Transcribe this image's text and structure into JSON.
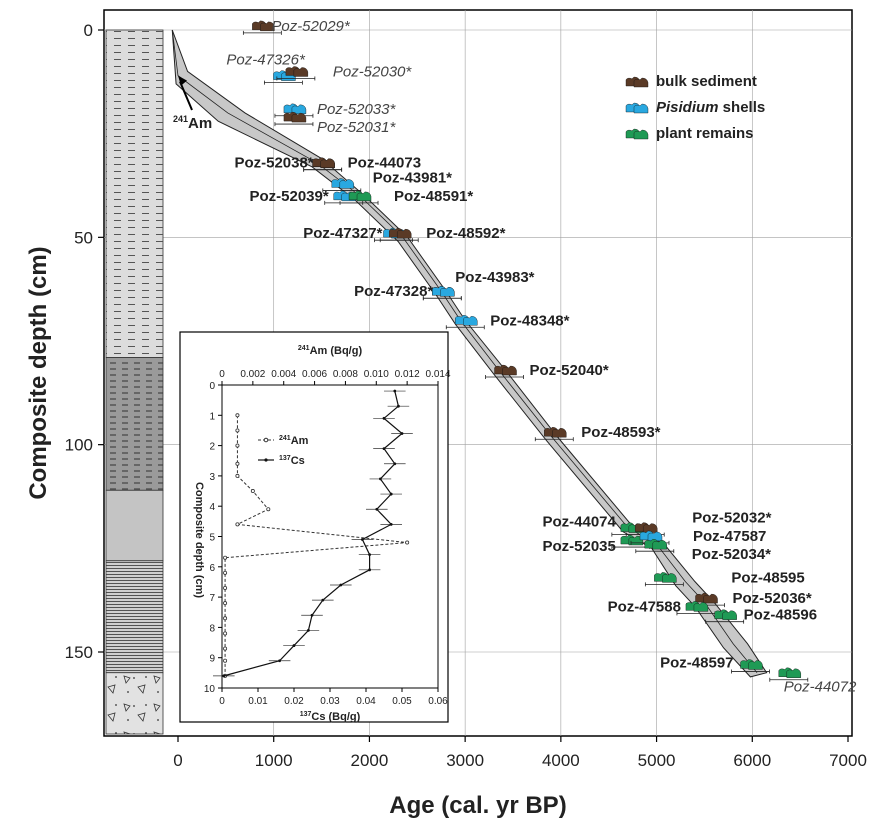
{
  "chart_data": [
    {
      "type": "scatter",
      "title": "",
      "xlabel": "Age (cal. yr BP)",
      "ylabel": "Composite depth (cm)",
      "xlim": [
        -900,
        7000
      ],
      "ylim": [
        172,
        -7
      ],
      "xticks": [
        0,
        1000,
        2000,
        3000,
        4000,
        5000,
        6000,
        7000
      ],
      "yticks": [
        0,
        50,
        100,
        150
      ],
      "grid": true,
      "legend": "top-right",
      "legend_entries": [
        {
          "label_pre": "",
          "label_em": "",
          "label_post": "bulk sediment",
          "kind": "bulk"
        },
        {
          "label_pre": "",
          "label_em": "Pisidium",
          "label_post": " shells",
          "kind": "shell"
        },
        {
          "label_pre": "",
          "label_em": "",
          "label_post": "plant remains",
          "kind": "plant"
        }
      ],
      "colors": {
        "bulk": "#5a3a26",
        "shell": "#29a8e0",
        "plant": "#1f9a55",
        "envelope": "#c8c8c8"
      },
      "age_model_mean": [
        [
          -60,
          0
        ],
        [
          0,
          11
        ],
        [
          520,
          20
        ],
        [
          1450,
          32
        ],
        [
          1900,
          40
        ],
        [
          2350,
          50
        ],
        [
          2750,
          63
        ],
        [
          2950,
          70
        ],
        [
          3350,
          82
        ],
        [
          3900,
          98
        ],
        [
          4700,
          120
        ],
        [
          5000,
          124
        ],
        [
          5300,
          133
        ],
        [
          5500,
          138
        ],
        [
          5800,
          148
        ],
        [
          6050,
          155
        ]
      ],
      "age_model_upper": [
        [
          -60,
          0
        ],
        [
          100,
          10
        ],
        [
          700,
          20
        ],
        [
          1500,
          31
        ],
        [
          1950,
          40
        ],
        [
          2400,
          50
        ],
        [
          2800,
          63
        ],
        [
          3000,
          70
        ],
        [
          3420,
          82
        ],
        [
          3960,
          98
        ],
        [
          4760,
          120
        ],
        [
          5080,
          124
        ],
        [
          5400,
          133
        ],
        [
          5600,
          138
        ],
        [
          5950,
          148
        ],
        [
          6150,
          155
        ]
      ],
      "age_model_lower": [
        [
          -60,
          0
        ],
        [
          -20,
          13
        ],
        [
          420,
          22
        ],
        [
          1400,
          33
        ],
        [
          1850,
          41
        ],
        [
          2300,
          51
        ],
        [
          2700,
          64
        ],
        [
          2900,
          71
        ],
        [
          3300,
          83
        ],
        [
          3850,
          99
        ],
        [
          4650,
          121
        ],
        [
          4950,
          125
        ],
        [
          5200,
          134
        ],
        [
          5400,
          139
        ],
        [
          5700,
          149
        ],
        [
          5980,
          156
        ]
      ],
      "labels": [
        {
          "text": "Poz-52029*",
          "italic": true,
          "age": 850,
          "depth": -1,
          "kind": "bulk",
          "side": "right",
          "dx": 12
        },
        {
          "text": "Poz-47326*",
          "italic": true,
          "age": 1070,
          "depth": 11,
          "kind": "shell",
          "side": "right",
          "dx": -54,
          "dy": -16
        },
        {
          "text": "Poz-52030*",
          "italic": true,
          "age": 1200,
          "depth": 10,
          "kind": "bulk",
          "side": "right",
          "dx": 40
        },
        {
          "text": "Poz-52033*",
          "italic": true,
          "age": 1180,
          "depth": 19,
          "kind": "shell",
          "side": "right",
          "dx": 26
        },
        {
          "text": "Poz-52031*",
          "italic": true,
          "age": 1180,
          "depth": 21,
          "kind": "bulk",
          "side": "right",
          "dx": 26,
          "dy": 10
        },
        {
          "text": "Poz-52038*",
          "italic": false,
          "age": 1480,
          "depth": 32,
          "kind": "bulk",
          "side": "left",
          "dx": -6
        },
        {
          "text": "Poz-44073",
          "italic": false,
          "age": 1480,
          "depth": 32,
          "kind": "bulk",
          "side": "right",
          "dx": 28
        },
        {
          "text": "Poz-43981*",
          "italic": false,
          "age": 1680,
          "depth": 37,
          "kind": "shell",
          "side": "right",
          "dx": 34,
          "dy": -6
        },
        {
          "text": "Poz-52039*",
          "italic": false,
          "age": 1700,
          "depth": 40,
          "kind": "shell",
          "side": "left",
          "dx": -12
        },
        {
          "text": "Poz-48591*",
          "italic": false,
          "age": 1860,
          "depth": 40,
          "kind": "plant",
          "side": "right",
          "dx": 38
        },
        {
          "text": "Poz-47327*",
          "italic": false,
          "age": 2220,
          "depth": 49,
          "kind": "shell",
          "side": "left",
          "dx": -8
        },
        {
          "text": "Poz-48592*",
          "italic": false,
          "age": 2280,
          "depth": 49,
          "kind": "bulk",
          "side": "right",
          "dx": 30
        },
        {
          "text": "Poz-47328*",
          "italic": false,
          "age": 2730,
          "depth": 63,
          "kind": "shell",
          "side": "left",
          "dx": -6
        },
        {
          "text": "Poz-43983*",
          "italic": false,
          "age": 2730,
          "depth": 63,
          "kind": "shell",
          "side": "right",
          "dx": 16,
          "dy": -14
        },
        {
          "text": "Poz-48348*",
          "italic": false,
          "age": 2970,
          "depth": 70,
          "kind": "shell",
          "side": "right",
          "dx": 28
        },
        {
          "text": "Poz-52040*",
          "italic": false,
          "age": 3380,
          "depth": 82,
          "kind": "bulk",
          "side": "right",
          "dx": 28
        },
        {
          "text": "Poz-48593*",
          "italic": false,
          "age": 3900,
          "depth": 97,
          "kind": "bulk",
          "side": "right",
          "dx": 30
        },
        {
          "text": "Poz-44074",
          "italic": false,
          "age": 4700,
          "depth": 120,
          "kind": "plant",
          "side": "left",
          "dx": -12,
          "dy": -6
        },
        {
          "text": "Poz-52035",
          "italic": false,
          "age": 4700,
          "depth": 123,
          "kind": "plant",
          "side": "left",
          "dx": -12,
          "dy": 6
        },
        {
          "text": "Poz-52032*",
          "italic": false,
          "age": 4850,
          "depth": 120,
          "kind": "bulk",
          "side": "right",
          "dx": 50,
          "dy": -10
        },
        {
          "text": "Poz-47587",
          "italic": false,
          "age": 4900,
          "depth": 122,
          "kind": "shell",
          "side": "right",
          "dx": 46
        },
        {
          "text": "Poz-52034*",
          "italic": false,
          "age": 4950,
          "depth": 124,
          "kind": "plant",
          "side": "right",
          "dx": 40,
          "dy": 10
        },
        {
          "text": "Poz-48595",
          "italic": false,
          "age": 5050,
          "depth": 132,
          "kind": "plant",
          "side": "right",
          "dx": 70
        },
        {
          "text": "Poz-52036*",
          "italic": false,
          "age": 5480,
          "depth": 137,
          "kind": "bulk",
          "side": "right",
          "dx": 30
        },
        {
          "text": "Poz-47588",
          "italic": false,
          "age": 5380,
          "depth": 139,
          "kind": "plant",
          "side": "left",
          "dx": -12
        },
        {
          "text": "Poz-48596",
          "italic": false,
          "age": 5680,
          "depth": 141,
          "kind": "plant",
          "side": "right",
          "dx": 22
        },
        {
          "text": "Poz-48597",
          "italic": false,
          "age": 5950,
          "depth": 153,
          "kind": "plant",
          "side": "left",
          "dx": -14,
          "dy": -2
        },
        {
          "text": "Poz-44072",
          "italic": true,
          "age": 6350,
          "depth": 155,
          "kind": "plant",
          "side": "right",
          "dx": -2,
          "dy": 14
        }
      ],
      "am_label": "241Am",
      "am_pointer_age": 0,
      "am_pointer_depth": 11
    },
    {
      "type": "line",
      "title": "",
      "xlabel_top": "241Am (Bq/g)",
      "xlabel_bottom": "137Cs (Bq/g)",
      "ylabel": "Composite depth (cm)",
      "xlim_top": [
        0,
        0.014
      ],
      "xticks_top": [
        0,
        0.002,
        0.004,
        0.006,
        0.008,
        0.01,
        0.012,
        0.014
      ],
      "xticklabels_top": [
        "0",
        "0.002",
        "0.004",
        "0.006",
        "0.008",
        "0.010",
        "0.012",
        "0.014"
      ],
      "xlim_bottom": [
        0,
        0.06
      ],
      "xticks_bottom": [
        0,
        0.01,
        0.02,
        0.03,
        0.04,
        0.05,
        0.06
      ],
      "xticklabels_bottom": [
        "0",
        "0.01",
        "0.02",
        "0.03",
        "0.04",
        "0.05",
        "0.06"
      ],
      "ylim": [
        0,
        10
      ],
      "yticks": [
        0,
        1,
        2,
        3,
        4,
        5,
        6,
        7,
        8,
        9,
        10
      ],
      "legend": "upper-left",
      "series": [
        {
          "name": "241Am",
          "style": "dashed",
          "marker": "open-circle",
          "x": [
            0.001,
            0.001,
            0.001,
            0.001,
            0.001,
            0.002,
            0.003,
            0.001,
            0.012,
            0.0002,
            0.0002,
            0.0002,
            0.0002,
            0.0002,
            0.0002,
            0.0002,
            0.0002,
            0.0002
          ],
          "y": [
            1.0,
            1.5,
            2.0,
            2.6,
            3.0,
            3.5,
            4.1,
            4.6,
            5.2,
            5.7,
            6.2,
            6.7,
            7.2,
            7.7,
            8.2,
            8.7,
            9.1,
            9.6
          ]
        },
        {
          "name": "137Cs",
          "style": "solid",
          "marker": "dot",
          "x": [
            0.048,
            0.049,
            0.045,
            0.05,
            0.045,
            0.048,
            0.044,
            0.047,
            0.043,
            0.047,
            0.039,
            0.041,
            0.041,
            0.033,
            0.028,
            0.025,
            0.024,
            0.02,
            0.016,
            0.0005
          ],
          "y": [
            0.2,
            0.7,
            1.1,
            1.6,
            2.1,
            2.6,
            3.1,
            3.6,
            4.1,
            4.6,
            5.1,
            5.6,
            6.1,
            6.6,
            7.1,
            7.6,
            8.1,
            8.6,
            9.1,
            9.6
          ],
          "err": [
            0.003,
            0.003,
            0.003,
            0.003,
            0.003,
            0.003,
            0.003,
            0.003,
            0.003,
            0.003,
            0.003,
            0.003,
            0.003,
            0.003,
            0.003,
            0.003,
            0.003,
            0.003,
            0.003,
            0.003
          ]
        }
      ]
    }
  ]
}
